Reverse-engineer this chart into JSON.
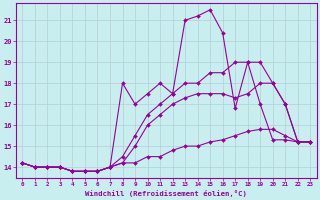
{
  "xlabel": "Windchill (Refroidissement éolien,°C)",
  "bg_color": "#c8eef0",
  "line_color": "#990099",
  "grid_color": "#b0c8cc",
  "xlim": [
    -0.5,
    23.5
  ],
  "ylim": [
    13.5,
    21.8
  ],
  "yticks": [
    14,
    15,
    16,
    17,
    18,
    19,
    20,
    21
  ],
  "xticks": [
    0,
    1,
    2,
    3,
    4,
    5,
    6,
    7,
    8,
    9,
    10,
    11,
    12,
    13,
    14,
    15,
    16,
    17,
    18,
    19,
    20,
    21,
    22,
    23
  ],
  "x": [
    0,
    1,
    2,
    3,
    4,
    5,
    6,
    7,
    8,
    9,
    10,
    11,
    12,
    13,
    14,
    15,
    16,
    17,
    18,
    19,
    20,
    21,
    22,
    23
  ],
  "series1": [
    14.2,
    14.0,
    14.0,
    14.0,
    13.8,
    13.8,
    13.8,
    14.0,
    14.2,
    14.2,
    14.5,
    14.5,
    14.8,
    15.0,
    15.0,
    15.2,
    15.3,
    15.5,
    15.7,
    15.8,
    15.8,
    15.5,
    15.2,
    15.2
  ],
  "series2": [
    14.2,
    14.0,
    14.0,
    14.0,
    13.8,
    13.8,
    13.8,
    14.0,
    14.2,
    15.0,
    16.0,
    16.5,
    17.0,
    17.3,
    17.5,
    17.5,
    17.5,
    17.3,
    17.5,
    18.0,
    18.0,
    17.0,
    15.2,
    15.2
  ],
  "series3": [
    14.2,
    14.0,
    14.0,
    14.0,
    13.8,
    13.8,
    13.8,
    14.0,
    14.5,
    15.5,
    16.5,
    17.0,
    17.5,
    18.0,
    18.0,
    18.5,
    18.5,
    19.0,
    19.0,
    19.0,
    18.0,
    17.0,
    15.2,
    15.2
  ],
  "series4": [
    14.2,
    14.0,
    14.0,
    14.0,
    13.8,
    13.8,
    13.8,
    14.0,
    18.0,
    17.0,
    17.5,
    18.0,
    17.5,
    21.0,
    21.2,
    21.5,
    20.4,
    16.8,
    19.0,
    17.0,
    15.3,
    15.3,
    15.2,
    15.2
  ]
}
